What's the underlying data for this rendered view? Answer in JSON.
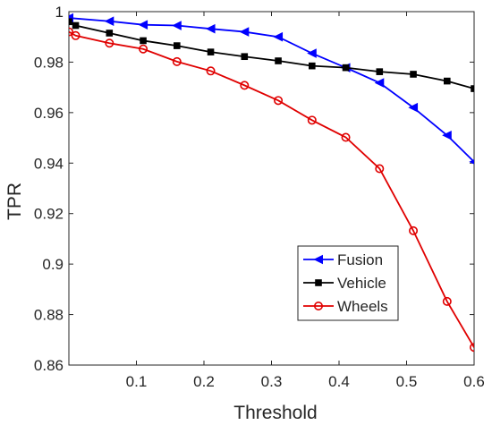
{
  "chart_data": {
    "type": "line",
    "title": "",
    "xlabel": "Threshold",
    "ylabel": "TPR",
    "xlim": [
      0,
      0.6
    ],
    "ylim": [
      0.86,
      1.0
    ],
    "xticks": [
      0.1,
      0.2,
      0.3,
      0.4,
      0.5,
      0.6
    ],
    "yticks": [
      0.86,
      0.88,
      0.9,
      0.92,
      0.94,
      0.96,
      0.98,
      1.0
    ],
    "xtick_labels": [
      "0.1",
      "0.2",
      "0.3",
      "0.4",
      "0.5",
      "0.6"
    ],
    "ytick_labels": [
      "0.86",
      "0.88",
      "0.9",
      "0.92",
      "0.94",
      "0.96",
      "0.98",
      "1"
    ],
    "grid": false,
    "legend_position": "lower-right",
    "series": [
      {
        "name": "Fusion",
        "color": "#0000ff",
        "marker": "triangle-left",
        "x": [
          0.0,
          0.06,
          0.11,
          0.16,
          0.21,
          0.26,
          0.31,
          0.36,
          0.41,
          0.46,
          0.51,
          0.56,
          0.6
        ],
        "y": [
          0.9975,
          0.9962,
          0.9948,
          0.9945,
          0.9932,
          0.992,
          0.99,
          0.9835,
          0.9778,
          0.9718,
          0.962,
          0.951,
          0.9405
        ]
      },
      {
        "name": "Vehicle",
        "color": "#000000",
        "marker": "square",
        "x": [
          0.0,
          0.01,
          0.06,
          0.11,
          0.16,
          0.21,
          0.26,
          0.31,
          0.36,
          0.41,
          0.46,
          0.51,
          0.56,
          0.6
        ],
        "y": [
          0.996,
          0.9945,
          0.9915,
          0.9885,
          0.9865,
          0.984,
          0.9822,
          0.9805,
          0.9785,
          0.9778,
          0.9762,
          0.9752,
          0.9725,
          0.9695
        ]
      },
      {
        "name": "Wheels",
        "color": "#e00000",
        "marker": "circle",
        "x": [
          0.0,
          0.01,
          0.06,
          0.11,
          0.16,
          0.21,
          0.26,
          0.31,
          0.36,
          0.41,
          0.46,
          0.51,
          0.56,
          0.6
        ],
        "y": [
          0.992,
          0.9905,
          0.9875,
          0.9852,
          0.9802,
          0.9765,
          0.9708,
          0.9648,
          0.957,
          0.9502,
          0.9378,
          0.9132,
          0.8852,
          0.867
        ]
      }
    ]
  }
}
